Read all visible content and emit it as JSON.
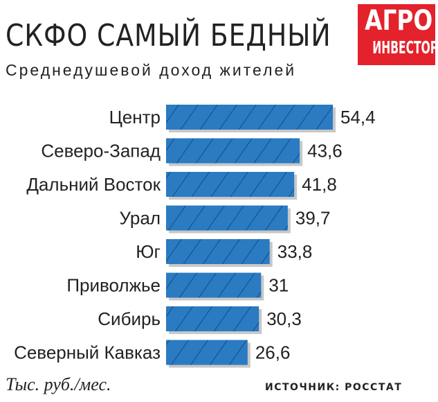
{
  "header": {
    "title": "СКФО САМЫЙ БЕДНЫЙ",
    "subtitle": "Среднедушевой доход жителей"
  },
  "logo": {
    "line1": "АГРО",
    "line2": "ИНВЕСТОР",
    "background": "#e3222c"
  },
  "footer": {
    "unit": "Тыс. руб./мес.",
    "source": "ИСТОЧНИК: РОССТАТ"
  },
  "colors": {
    "bar": "#2a7bc2",
    "bar_hatch": "#16508a",
    "bar_shadow": "#c8c8c8"
  },
  "chart_data": {
    "type": "bar",
    "orientation": "horizontal",
    "categories": [
      "Центр",
      "Северо-Запад",
      "Дальний Восток",
      "Урал",
      "Юг",
      "Приволжье",
      "Сибирь",
      "Северный Кавказ"
    ],
    "values": [
      54.4,
      43.6,
      41.8,
      39.7,
      33.8,
      31,
      30.3,
      26.6
    ],
    "value_labels": [
      "54,4",
      "43,6",
      "41,8",
      "39,7",
      "33,8",
      "31",
      "30,3",
      "26,6"
    ],
    "title": "СКФО САМЫЙ БЕДНЫЙ",
    "subtitle": "Среднедушевой доход жителей",
    "xlabel": "",
    "ylabel": "",
    "grid": false,
    "legend": "none"
  }
}
